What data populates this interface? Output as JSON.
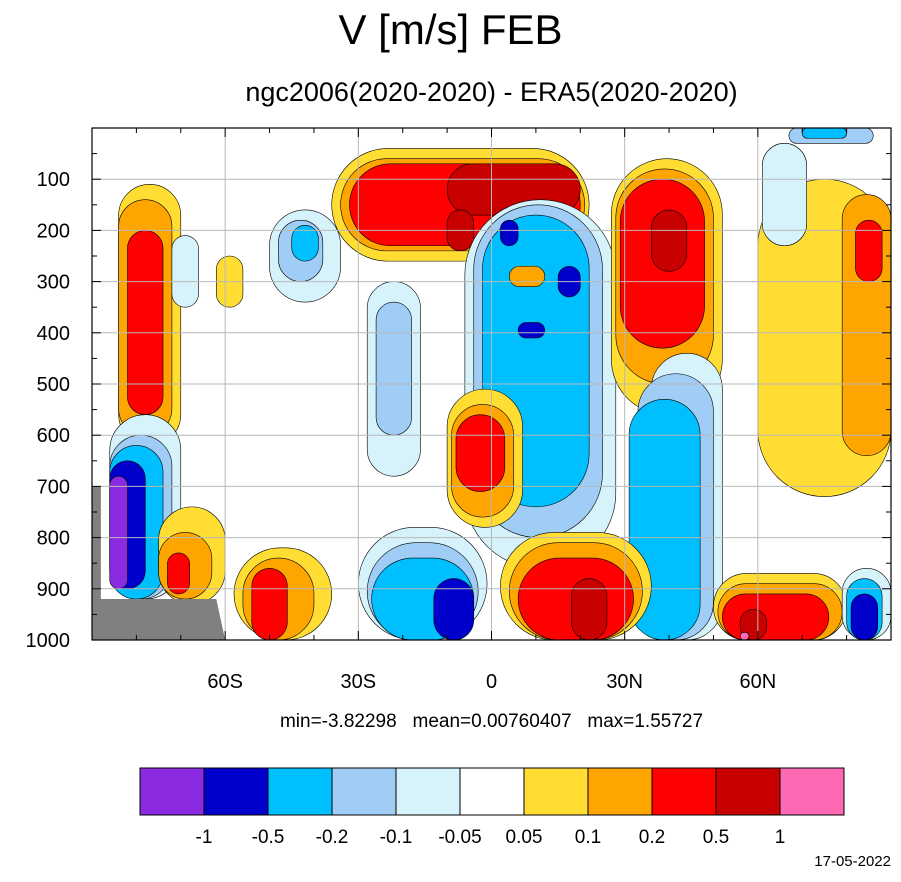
{
  "title": "V [m/s] FEB",
  "subtitle": "ngc2006(2020-2020) - ERA5(2020-2020)",
  "stats": {
    "min": "min=-3.82298",
    "mean": "mean=0.00760407",
    "max": "max=1.55727"
  },
  "date": "17-05-2022",
  "chart_data": {
    "type": "heatmap",
    "description_text": "",
    "xlim": [
      -90,
      90
    ],
    "ylim": [
      1000,
      0
    ],
    "x_ticks": [
      {
        "value": -60,
        "label": "60S"
      },
      {
        "value": -30,
        "label": "30S"
      },
      {
        "value": 0,
        "label": "0"
      },
      {
        "value": 30,
        "label": "30N"
      },
      {
        "value": 60,
        "label": "60N"
      }
    ],
    "y_ticks": [
      {
        "value": 100,
        "label": "100"
      },
      {
        "value": 200,
        "label": "200"
      },
      {
        "value": 300,
        "label": "300"
      },
      {
        "value": 400,
        "label": "400"
      },
      {
        "value": 500,
        "label": "500"
      },
      {
        "value": 600,
        "label": "600"
      },
      {
        "value": 700,
        "label": "700"
      },
      {
        "value": 800,
        "label": "800"
      },
      {
        "value": 900,
        "label": "900"
      },
      {
        "value": 1000,
        "label": "1000"
      }
    ],
    "grid": true,
    "colorbar": {
      "levels": [
        "-1",
        "-0.5",
        "-0.2",
        "-0.1",
        "-0.05",
        "0.05",
        "0.1",
        "0.2",
        "0.5",
        "1"
      ],
      "colors": [
        "#8a2be2",
        "#0000cd",
        "#00bfff",
        "#a0cdf5",
        "#d6f3fc",
        "#ffffff",
        "#ffdd33",
        "#ffa500",
        "#ff0000",
        "#c80000",
        "#ff69b4"
      ]
    },
    "missing_color": "#808080",
    "regions": [
      {
        "level": 0.05,
        "lat": [
          -84,
          -70
        ],
        "p": [
          110,
          620
        ]
      },
      {
        "level": 0.1,
        "lat": [
          -84,
          -72
        ],
        "p": [
          140,
          600
        ]
      },
      {
        "level": 0.2,
        "lat": [
          -82,
          -74
        ],
        "p": [
          200,
          560
        ]
      },
      {
        "level": 0.05,
        "lat": [
          -62,
          -56
        ],
        "p": [
          250,
          350
        ]
      },
      {
        "level": -0.05,
        "lat": [
          -72,
          -66
        ],
        "p": [
          210,
          350
        ]
      },
      {
        "level": -0.05,
        "lat": [
          -50,
          -34
        ],
        "p": [
          160,
          340
        ]
      },
      {
        "level": -0.1,
        "lat": [
          -48,
          -38
        ],
        "p": [
          180,
          300
        ]
      },
      {
        "level": -0.2,
        "lat": [
          -45,
          -39
        ],
        "p": [
          190,
          260
        ]
      },
      {
        "level": 0.05,
        "lat": [
          -36,
          22
        ],
        "p": [
          40,
          260
        ]
      },
      {
        "level": 0.1,
        "lat": [
          -34,
          21
        ],
        "p": [
          60,
          240
        ]
      },
      {
        "level": 0.2,
        "lat": [
          -32,
          20
        ],
        "p": [
          70,
          230
        ]
      },
      {
        "level": 0.5,
        "lat": [
          -10,
          20
        ],
        "p": [
          70,
          170
        ]
      },
      {
        "level": 0.5,
        "lat": [
          -10,
          -4
        ],
        "p": [
          160,
          240
        ]
      },
      {
        "level": -0.05,
        "lat": [
          -28,
          -16
        ],
        "p": [
          300,
          680
        ]
      },
      {
        "level": -0.1,
        "lat": [
          -26,
          -18
        ],
        "p": [
          340,
          600
        ]
      },
      {
        "level": -0.05,
        "lat": [
          -6,
          28
        ],
        "p": [
          140,
          860
        ]
      },
      {
        "level": -0.1,
        "lat": [
          -4,
          25
        ],
        "p": [
          150,
          800
        ]
      },
      {
        "level": -0.2,
        "lat": [
          -2,
          22
        ],
        "p": [
          170,
          740
        ]
      },
      {
        "level": -0.5,
        "lat": [
          2,
          6
        ],
        "p": [
          180,
          230
        ]
      },
      {
        "level": -0.5,
        "lat": [
          15,
          20
        ],
        "p": [
          270,
          330
        ]
      },
      {
        "level": -0.5,
        "lat": [
          6,
          12
        ],
        "p": [
          380,
          410
        ]
      },
      {
        "level": 0.1,
        "lat": [
          4,
          12
        ],
        "p": [
          270,
          310
        ]
      },
      {
        "level": 0.05,
        "lat": [
          -10,
          7
        ],
        "p": [
          510,
          780
        ]
      },
      {
        "level": 0.1,
        "lat": [
          -9,
          5
        ],
        "p": [
          540,
          760
        ]
      },
      {
        "level": 0.2,
        "lat": [
          -8,
          3
        ],
        "p": [
          560,
          710
        ]
      },
      {
        "level": 0.05,
        "lat": [
          27,
          52
        ],
        "p": [
          60,
          560
        ]
      },
      {
        "level": 0.1,
        "lat": [
          28,
          50
        ],
        "p": [
          80,
          500
        ]
      },
      {
        "level": 0.2,
        "lat": [
          29,
          48
        ],
        "p": [
          100,
          430
        ]
      },
      {
        "level": 0.5,
        "lat": [
          36,
          44
        ],
        "p": [
          160,
          280
        ]
      },
      {
        "level": -0.05,
        "lat": [
          36,
          52
        ],
        "p": [
          440,
          1000
        ]
      },
      {
        "level": -0.1,
        "lat": [
          33,
          50
        ],
        "p": [
          480,
          1000
        ]
      },
      {
        "level": -0.2,
        "lat": [
          31,
          47
        ],
        "p": [
          530,
          1000
        ]
      },
      {
        "level": 0.05,
        "lat": [
          60,
          90
        ],
        "p": [
          100,
          720
        ]
      },
      {
        "level": 0.1,
        "lat": [
          79,
          90
        ],
        "p": [
          130,
          640
        ]
      },
      {
        "level": 0.2,
        "lat": [
          82,
          88
        ],
        "p": [
          180,
          300
        ]
      },
      {
        "level": -0.05,
        "lat": [
          61,
          71
        ],
        "p": [
          30,
          230
        ]
      },
      {
        "level": -0.1,
        "lat": [
          67,
          86
        ],
        "p": [
          0,
          30
        ]
      },
      {
        "level": -0.2,
        "lat": [
          70,
          80
        ],
        "p": [
          0,
          20
        ]
      },
      {
        "level": -0.05,
        "lat": [
          -86,
          -70
        ],
        "p": [
          560,
          920
        ]
      },
      {
        "level": -0.1,
        "lat": [
          -86,
          -72
        ],
        "p": [
          600,
          920
        ]
      },
      {
        "level": -0.2,
        "lat": [
          -86,
          -74
        ],
        "p": [
          620,
          920
        ]
      },
      {
        "level": -0.5,
        "lat": [
          -86,
          -78
        ],
        "p": [
          650,
          900
        ]
      },
      {
        "level": -1,
        "lat": [
          -86,
          -82
        ],
        "p": [
          680,
          900
        ]
      },
      {
        "level": 0.05,
        "lat": [
          -75,
          -60
        ],
        "p": [
          740,
          930
        ]
      },
      {
        "level": 0.1,
        "lat": [
          -75,
          -63
        ],
        "p": [
          790,
          920
        ]
      },
      {
        "level": 0.2,
        "lat": [
          -73,
          -68
        ],
        "p": [
          830,
          910
        ]
      },
      {
        "level": 0.05,
        "lat": [
          -58,
          -36
        ],
        "p": [
          820,
          1000
        ]
      },
      {
        "level": 0.1,
        "lat": [
          -56,
          -40
        ],
        "p": [
          840,
          1000
        ]
      },
      {
        "level": 0.2,
        "lat": [
          -54,
          -46
        ],
        "p": [
          860,
          1000
        ]
      },
      {
        "level": -0.05,
        "lat": [
          -30,
          -1
        ],
        "p": [
          780,
          1000
        ]
      },
      {
        "level": -0.1,
        "lat": [
          -28,
          -3
        ],
        "p": [
          810,
          1000
        ]
      },
      {
        "level": -0.2,
        "lat": [
          -27,
          -4
        ],
        "p": [
          840,
          1000
        ]
      },
      {
        "level": -0.5,
        "lat": [
          -13,
          -4
        ],
        "p": [
          880,
          1000
        ]
      },
      {
        "level": 0.05,
        "lat": [
          2,
          36
        ],
        "p": [
          790,
          1000
        ]
      },
      {
        "level": 0.1,
        "lat": [
          4,
          34
        ],
        "p": [
          810,
          1000
        ]
      },
      {
        "level": 0.2,
        "lat": [
          6,
          32
        ],
        "p": [
          840,
          1000
        ]
      },
      {
        "level": 0.5,
        "lat": [
          18,
          26
        ],
        "p": [
          880,
          1000
        ]
      },
      {
        "level": 0.05,
        "lat": [
          50,
          80
        ],
        "p": [
          870,
          1000
        ]
      },
      {
        "level": 0.1,
        "lat": [
          51,
          79
        ],
        "p": [
          890,
          1000
        ]
      },
      {
        "level": 0.2,
        "lat": [
          52,
          76
        ],
        "p": [
          910,
          1000
        ]
      },
      {
        "level": 0.5,
        "lat": [
          56,
          62
        ],
        "p": [
          940,
          1000
        ]
      },
      {
        "level": 1,
        "lat": [
          56,
          58
        ],
        "p": [
          985,
          1000
        ]
      },
      {
        "level": -0.05,
        "lat": [
          79,
          90
        ],
        "p": [
          860,
          1000
        ]
      },
      {
        "level": -0.2,
        "lat": [
          80,
          88
        ],
        "p": [
          880,
          1000
        ]
      },
      {
        "level": -0.5,
        "lat": [
          81,
          87
        ],
        "p": [
          910,
          1000
        ]
      }
    ]
  }
}
